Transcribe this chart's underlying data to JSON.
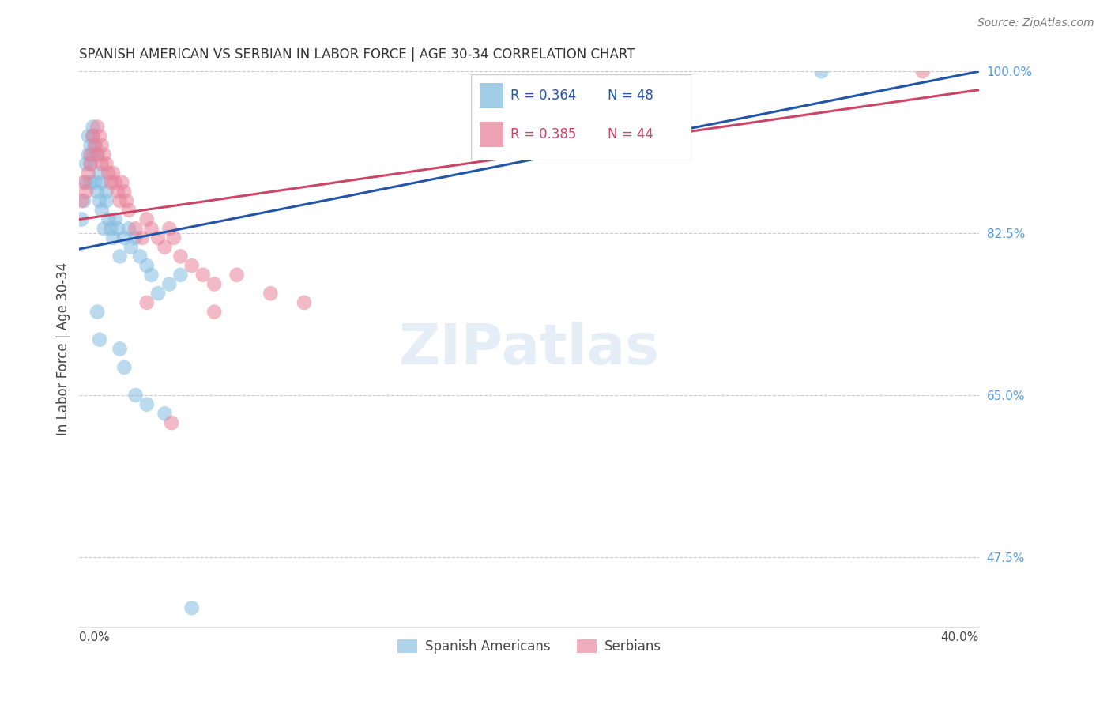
{
  "title": "SPANISH AMERICAN VS SERBIAN IN LABOR FORCE | AGE 30-34 CORRELATION CHART",
  "source": "Source: ZipAtlas.com",
  "ylabel": "In Labor Force | Age 30-34",
  "xlim": [
    0.0,
    0.4
  ],
  "ylim": [
    0.4,
    1.0
  ],
  "blue_color": "#85bce0",
  "pink_color": "#e8829a",
  "blue_line_color": "#2255aa",
  "pink_line_color": "#cc4466",
  "right_axis_color": "#5599dd",
  "legend_blue_R": "0.364",
  "legend_blue_N": "48",
  "legend_pink_R": "0.385",
  "legend_pink_N": "44",
  "grid_color": "#cccccc",
  "background_color": "#ffffff",
  "blue_x": [
    0.001,
    0.002,
    0.003,
    0.003,
    0.004,
    0.004,
    0.005,
    0.005,
    0.005,
    0.006,
    0.006,
    0.006,
    0.007,
    0.007,
    0.008,
    0.008,
    0.009,
    0.009,
    0.01,
    0.01,
    0.011,
    0.012,
    0.012,
    0.013,
    0.014,
    0.015,
    0.016,
    0.017,
    0.018,
    0.02,
    0.022,
    0.023,
    0.025,
    0.027,
    0.03,
    0.032,
    0.035,
    0.04,
    0.045,
    0.008,
    0.009,
    0.018,
    0.02,
    0.025,
    0.03,
    0.038,
    0.33,
    0.05
  ],
  "blue_y": [
    0.84,
    0.86,
    0.9,
    0.88,
    0.91,
    0.93,
    0.92,
    0.9,
    0.88,
    0.94,
    0.93,
    0.91,
    0.92,
    0.88,
    0.87,
    0.91,
    0.86,
    0.89,
    0.88,
    0.85,
    0.83,
    0.87,
    0.86,
    0.84,
    0.83,
    0.82,
    0.84,
    0.83,
    0.8,
    0.82,
    0.83,
    0.81,
    0.82,
    0.8,
    0.79,
    0.78,
    0.76,
    0.77,
    0.78,
    0.74,
    0.71,
    0.7,
    0.68,
    0.65,
    0.64,
    0.63,
    1.0,
    0.42
  ],
  "pink_x": [
    0.001,
    0.002,
    0.003,
    0.004,
    0.005,
    0.005,
    0.006,
    0.007,
    0.008,
    0.008,
    0.009,
    0.01,
    0.01,
    0.011,
    0.012,
    0.013,
    0.014,
    0.015,
    0.016,
    0.017,
    0.018,
    0.019,
    0.02,
    0.021,
    0.022,
    0.025,
    0.028,
    0.03,
    0.032,
    0.035,
    0.038,
    0.04,
    0.042,
    0.045,
    0.05,
    0.055,
    0.06,
    0.07,
    0.085,
    0.1,
    0.03,
    0.06,
    0.375,
    0.041
  ],
  "pink_y": [
    0.86,
    0.88,
    0.87,
    0.89,
    0.91,
    0.9,
    0.93,
    0.92,
    0.91,
    0.94,
    0.93,
    0.92,
    0.9,
    0.91,
    0.9,
    0.89,
    0.88,
    0.89,
    0.88,
    0.87,
    0.86,
    0.88,
    0.87,
    0.86,
    0.85,
    0.83,
    0.82,
    0.84,
    0.83,
    0.82,
    0.81,
    0.83,
    0.82,
    0.8,
    0.79,
    0.78,
    0.77,
    0.78,
    0.76,
    0.75,
    0.75,
    0.74,
    1.0,
    0.62
  ],
  "blue_line_x0": 0.0,
  "blue_line_y0": 0.808,
  "blue_line_x1": 0.4,
  "blue_line_y1": 1.0,
  "pink_line_x0": 0.0,
  "pink_line_y0": 0.84,
  "pink_line_x1": 0.4,
  "pink_line_y1": 0.98
}
